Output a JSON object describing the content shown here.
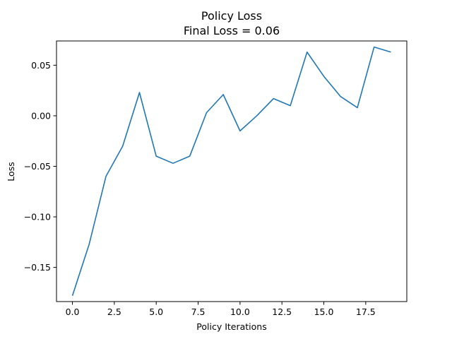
{
  "chart_data": {
    "type": "line",
    "title": "Policy Loss",
    "subtitle": "Final Loss = 0.06",
    "xlabel": "Policy Iterations",
    "ylabel": "Loss",
    "xlim": [
      -0.95,
      19.95
    ],
    "ylim": [
      -0.1838,
      0.074
    ],
    "xticks": [
      0.0,
      2.5,
      5.0,
      7.5,
      10.0,
      12.5,
      15.0,
      17.5
    ],
    "xtick_labels": [
      "0.0",
      "2.5",
      "5.0",
      "7.5",
      "10.0",
      "12.5",
      "15.0",
      "17.5"
    ],
    "yticks": [
      -0.15,
      -0.1,
      -0.05,
      0.0,
      0.05
    ],
    "ytick_labels": [
      "−0.15",
      "−0.10",
      "−0.05",
      "0.00",
      "0.05"
    ],
    "grid": false,
    "series": [
      {
        "color": "#1f77b4",
        "x": [
          0,
          1,
          2,
          3,
          4,
          5,
          6,
          7,
          8,
          9,
          10,
          11,
          12,
          13,
          14,
          15,
          16,
          17,
          18,
          19
        ],
        "y": [
          -0.178,
          -0.127,
          -0.06,
          -0.03,
          0.023,
          -0.04,
          -0.047,
          -0.04,
          0.003,
          0.021,
          -0.015,
          0.0,
          0.017,
          0.01,
          0.063,
          0.039,
          0.019,
          0.008,
          0.068,
          0.063
        ]
      }
    ]
  }
}
